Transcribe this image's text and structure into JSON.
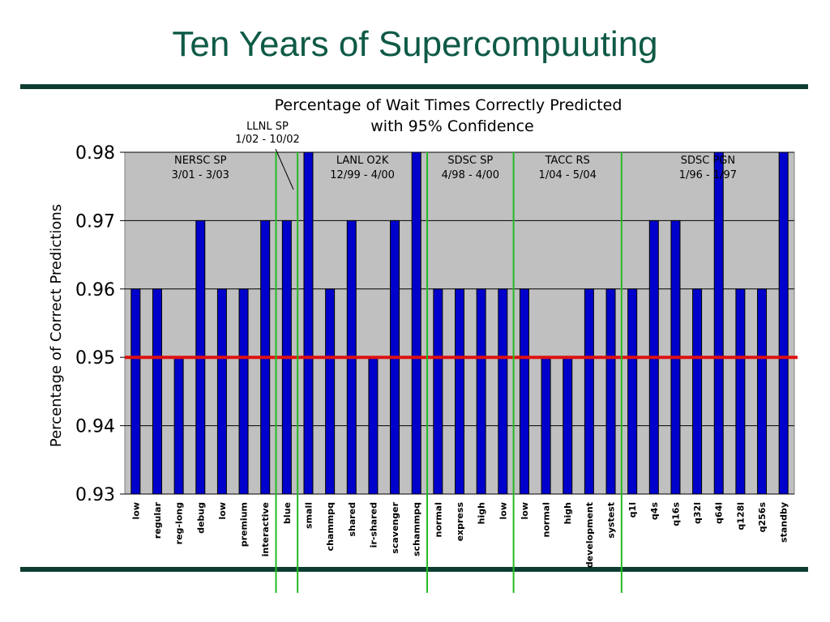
{
  "slide": {
    "title": "Ten Years of Supercompuuting"
  },
  "colors": {
    "plot_bg": "#c0c0c0",
    "bar": "#0000cc",
    "threshold": "#dd1111",
    "divider": "#22bb22",
    "rule": "#0d3d31",
    "title": "#0f5a46"
  },
  "chart_data": {
    "type": "bar",
    "title_lines": [
      "Percentage of Wait Times Correctly Predicted",
      "with 95% Confidence"
    ],
    "xlabel": "",
    "ylabel": "Percentage of Correct Predictions",
    "ylim": [
      0.93,
      0.98
    ],
    "yticks": [
      "0.93",
      "0.94",
      "0.95",
      "0.96",
      "0.97",
      "0.98"
    ],
    "grid": true,
    "threshold": 0.95,
    "categories": [
      "low",
      "regular",
      "reg-long",
      "debug",
      "low",
      "premium",
      "interactive",
      "blue",
      "small",
      "chammpq",
      "shared",
      "ir-shared",
      "scavenger",
      "schammpq",
      "normal",
      "express",
      "high",
      "low",
      "low",
      "normal",
      "high",
      "development",
      "systest",
      "q1l",
      "q4s",
      "q16s",
      "q32l",
      "q64l",
      "q128l",
      "q256s",
      "standby"
    ],
    "values": [
      0.96,
      0.96,
      0.95,
      0.97,
      0.96,
      0.96,
      0.97,
      0.97,
      0.98,
      0.96,
      0.97,
      0.95,
      0.97,
      0.98,
      0.96,
      0.96,
      0.96,
      0.96,
      0.96,
      0.95,
      0.95,
      0.96,
      0.96,
      0.96,
      0.97,
      0.97,
      0.96,
      0.98,
      0.96,
      0.96,
      0.98
    ],
    "groups": [
      {
        "name": "NERSC SP",
        "dates": "3/01 - 3/03",
        "start": 0,
        "end": 6
      },
      {
        "name": "LLNL SP",
        "dates": "1/02 - 10/02",
        "start": 7,
        "end": 7
      },
      {
        "name": "LANL O2K",
        "dates": "12/99 - 4/00",
        "start": 8,
        "end": 13
      },
      {
        "name": "SDSC SP",
        "dates": "4/98 - 4/00",
        "start": 14,
        "end": 17
      },
      {
        "name": "TACC RS",
        "dates": "1/04 - 5/04",
        "start": 18,
        "end": 22
      },
      {
        "name": "SDSC PGN",
        "dates": "1/96 - 1/97",
        "start": 23,
        "end": 30
      }
    ]
  }
}
